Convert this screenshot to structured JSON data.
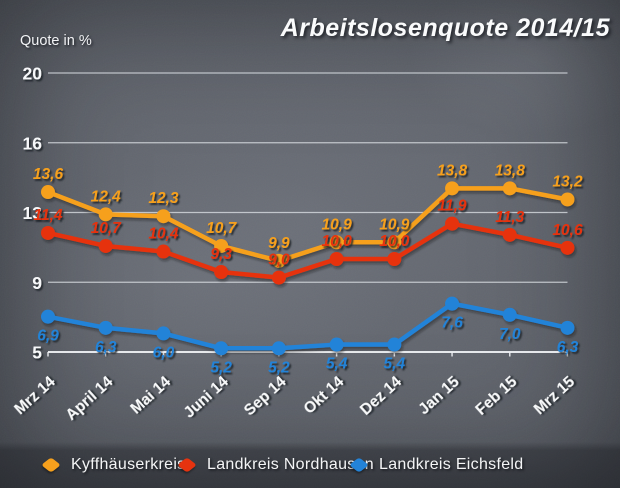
{
  "title": "Arbeitslosenquote 2014/15",
  "y_axis_label": "Quote in %",
  "chart_data": {
    "type": "line",
    "title": "Arbeitslosenquote 2014/15",
    "ylabel": "Quote in %",
    "categories": [
      "Mrz 14",
      "April 14",
      "Mai 14",
      "Juni 14",
      "Sep 14",
      "Okt 14",
      "Dez 14",
      "Jan 15",
      "Feb 15",
      "Mrz 15"
    ],
    "y_ticks": [
      20,
      16,
      13,
      9,
      5
    ],
    "ylim": [
      5,
      20
    ],
    "grid": true,
    "legend_position": "bottom",
    "decimal_separator": ",",
    "series": [
      {
        "name": "Kyffhäuserkreis",
        "color": "#F6A01D",
        "label_position": "above",
        "values": [
          13.6,
          12.4,
          12.3,
          10.7,
          9.9,
          10.9,
          10.9,
          13.8,
          13.8,
          13.2
        ]
      },
      {
        "name": "Landkreis Nordhausen",
        "color": "#E6330F",
        "label_position": "above",
        "values": [
          11.4,
          10.7,
          10.4,
          9.3,
          9.0,
          10.0,
          10.0,
          11.9,
          11.3,
          10.6
        ]
      },
      {
        "name": "Landkreis Eichsfeld",
        "color": "#2383D8",
        "label_position": "below",
        "values": [
          6.9,
          6.3,
          6.0,
          5.2,
          5.2,
          5.4,
          5.4,
          7.6,
          7.0,
          6.3
        ]
      }
    ]
  }
}
